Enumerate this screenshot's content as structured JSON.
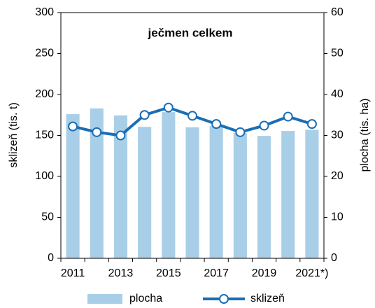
{
  "chart_data": {
    "type": "bar",
    "title": "ječmen celkem",
    "categories": [
      "2011",
      null,
      "2013",
      null,
      "2015",
      null,
      "2017",
      null,
      "2019",
      null,
      "2021*)"
    ],
    "ylabel": "sklizeň (tis. t)",
    "y2label": "plocha (tis. ha)",
    "ylim": [
      0,
      300
    ],
    "yticks": [
      0,
      50,
      100,
      150,
      200,
      250,
      300
    ],
    "y2lim": [
      0,
      60
    ],
    "y2ticks": [
      0,
      10,
      20,
      30,
      40,
      50,
      60
    ],
    "series": [
      {
        "name": "plocha",
        "type": "bar",
        "axis": "y2",
        "color": "#a9cfe8",
        "values": [
          35.2,
          36.6,
          34.9,
          32.1,
          35.7,
          32.0,
          32.3,
          30.6,
          29.9,
          31.1,
          31.4
        ]
      },
      {
        "name": "sklizeň",
        "type": "line",
        "axis": "y",
        "color": "#1a6eb5",
        "values": [
          161,
          154,
          150,
          175,
          184,
          174,
          164,
          154,
          162,
          173,
          164
        ]
      }
    ]
  }
}
